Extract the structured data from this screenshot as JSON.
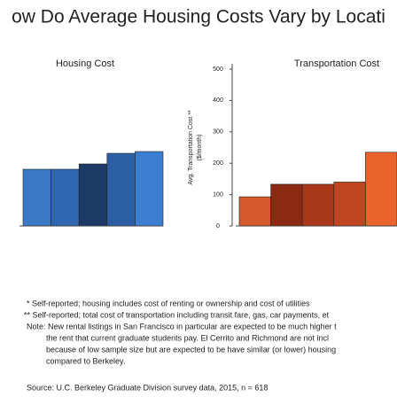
{
  "chart_data": [
    {
      "type": "bar",
      "title": "Housing Cost",
      "categories": [
        null,
        null,
        null,
        null,
        null
      ],
      "values": [
        1.6,
        1.6,
        1.75,
        2.05,
        2.1
      ],
      "colors": [
        "#3a78c6",
        "#2f67b0",
        "#1e3a66",
        "#2b5ea3",
        "#3c7fd2"
      ],
      "ylim": [
        0,
        4
      ]
    },
    {
      "type": "bar",
      "title": "Transportation Cost",
      "ylabel": "Avg. Transportation Cost **",
      "ylabel2": "($/month)",
      "categories": [
        null,
        null,
        null,
        null,
        null
      ],
      "values": [
        93,
        133,
        133,
        140,
        235
      ],
      "colors": [
        "#d55a2b",
        "#8a2a12",
        "#a9381a",
        "#bf4520",
        "#e9632b"
      ],
      "ylim": [
        0,
        500
      ],
      "yticks": [
        0,
        100,
        200,
        300,
        400,
        500
      ]
    }
  ],
  "title": "ow Do Average Housing Costs Vary by Locati",
  "notes": [
    "* Self-reported; housing includes cost of renting or ownership and cost of utilities",
    "** Self-reported; total cost of transportation including transit fare, gas, car payments, et",
    "Note: New rental listings in San Francisco in particular are expected to be much higher t",
    "the rent that current graduate students pay. El Cerrito and Richmond are not incl",
    "because of low sample size but are expected to be have similar (or lower) housing",
    "compared to Berkeley."
  ],
  "source": "Source: U.C. Berkeley Graduate Division survey data, 2015, n = 618"
}
